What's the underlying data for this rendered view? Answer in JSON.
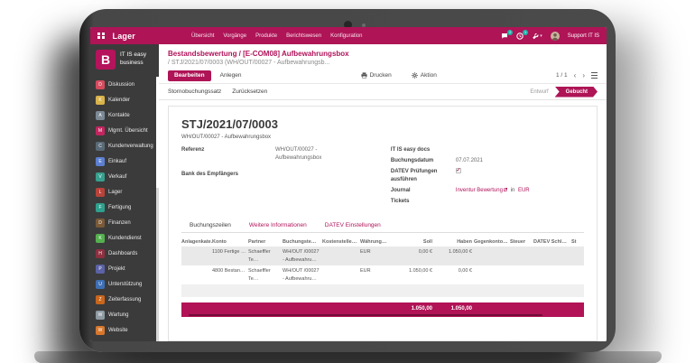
{
  "colors": {
    "primary": "#ae1456",
    "primary_dark": "#8e0f45",
    "teal_badge": "#1cb5ac",
    "sidebar_bg": "#3b3b3b",
    "bezel": "#474747",
    "row_stripe": "#e9e9e9"
  },
  "topbar": {
    "app_name": "Lager",
    "menu_items": [
      "Übersicht",
      "Vorgänge",
      "Produkte",
      "Berichtswesen",
      "Konfiguration"
    ],
    "messages_badge": "2",
    "activities_badge": "1",
    "user_name": "Support IT IS"
  },
  "sidebar": {
    "logo_letter": "B",
    "company_line1": "IT IS easy",
    "company_line2": "business",
    "items": [
      {
        "label": "Diskussion",
        "color": "#d64b5e",
        "glyph": "D"
      },
      {
        "label": "Kalender",
        "color": "#d9b34a",
        "glyph": "K"
      },
      {
        "label": "Kontakte",
        "color": "#7d8a96",
        "glyph": "A"
      },
      {
        "label": "Mgmt. Übersicht",
        "color": "#c2255f",
        "glyph": "M"
      },
      {
        "label": "Kundenverwaltung",
        "color": "#5a6b78",
        "glyph": "C"
      },
      {
        "label": "Einkauf",
        "color": "#5c7fd0",
        "glyph": "E"
      },
      {
        "label": "Verkauf",
        "color": "#37a08f",
        "glyph": "V"
      },
      {
        "label": "Lager",
        "color": "#b8433a",
        "glyph": "L"
      },
      {
        "label": "Fertigung",
        "color": "#2fa08e",
        "glyph": "F"
      },
      {
        "label": "Finanzen",
        "color": "#7a5a38",
        "glyph": "D"
      },
      {
        "label": "Kundendienst",
        "color": "#55b04f",
        "glyph": "K"
      },
      {
        "label": "Dashboards",
        "color": "#8e3040",
        "glyph": "H"
      },
      {
        "label": "Projekt",
        "color": "#5b62a5",
        "glyph": "P"
      },
      {
        "label": "Unterstützung",
        "color": "#3f6fb5",
        "glyph": "U"
      },
      {
        "label": "Zeiterfassung",
        "color": "#c9661c",
        "glyph": "Z"
      },
      {
        "label": "Wartung",
        "color": "#8f9aa3",
        "glyph": "W"
      },
      {
        "label": "Website",
        "color": "#d8772b",
        "glyph": "W"
      }
    ]
  },
  "breadcrumb": {
    "line1": "Bestandsbewertung / [E-COM08] Aufbewahrungsbox",
    "line2": "/ STJ/2021/07/0003 (WH/OUT/00027 - Aufbewahrungsb..."
  },
  "pager": {
    "text": "1 / 1"
  },
  "toolbar": {
    "edit": "Bearbeiten",
    "create": "Anlegen",
    "print": "Drucken",
    "action": "Aktion"
  },
  "actionbar": {
    "buttons": [
      "Stornobuchungssatz",
      "Zurücksetzen"
    ],
    "statuses": [
      {
        "label": "Entwurf",
        "active": false
      },
      {
        "label": "Gebucht",
        "active": true
      }
    ]
  },
  "form": {
    "title": "STJ/2021/07/0003",
    "subtitle": "WH/OUT/00027 - Aufbewahrungsbox",
    "referenz_label": "Referenz",
    "referenz_value": "WH/OUT/00027 - Aufbewahrungsbox",
    "bank_label": "Bank des Empfängers",
    "docs_label": "IT IS easy docs",
    "buchungsdatum_label": "Buchungsdatum",
    "buchungsdatum_value": "07.07.2021",
    "datev_label": "DATEV Prüfungen ausführen",
    "datev_checked": true,
    "journal_label": "Journal",
    "journal_value": "Inventur Bewertung",
    "journal_in": "in",
    "journal_currency": "EUR",
    "tickets_label": "Tickets"
  },
  "tabs": [
    {
      "label": "Buchungszeilen",
      "active": true
    },
    {
      "label": "Weitere Informationen",
      "active": false
    },
    {
      "label": "DATEV Einstellungen",
      "active": false
    }
  ],
  "table": {
    "headers": [
      "Anlagenkate…",
      "Konto",
      "Partner",
      "Buchungste…",
      "Kostenstelle…",
      "Währung…",
      "Soll",
      "Haben",
      "Gegenkonto…",
      "Steuer",
      "DATEV Schl…",
      "St"
    ],
    "rows": [
      [
        "",
        "1100 Fertige …",
        "Schaeffler Te…",
        "WH/OUT /00027 - Aufbewahru…",
        "",
        "EUR",
        "0,00 €",
        "1.050,00 €",
        "",
        "",
        "",
        ""
      ],
      [
        "",
        "4800 Bestan…",
        "Schaeffler Te…",
        "WH/OUT /00027 - Aufbewahru…",
        "",
        "EUR",
        "1.050,00 €",
        "0,00 €",
        "",
        "",
        "",
        ""
      ]
    ],
    "footer": [
      "",
      "",
      "",
      "",
      "",
      "",
      "1.050,00",
      "1.050,00",
      "",
      "",
      "",
      ""
    ]
  }
}
